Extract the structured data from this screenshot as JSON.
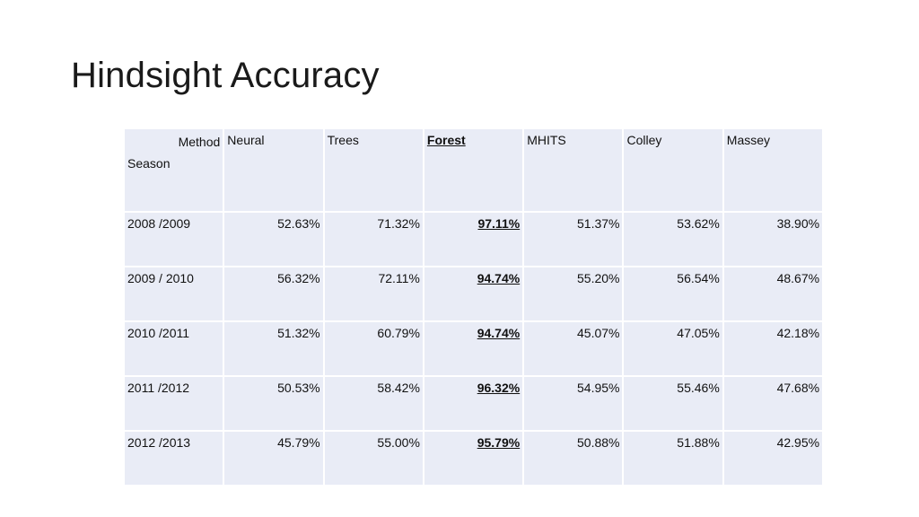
{
  "title": "Hindsight Accuracy",
  "table": {
    "corner_method": "Method",
    "corner_season": "Season",
    "headers": [
      "Neural",
      "Trees",
      "Forest",
      "MHITS",
      "Colley",
      "Massey"
    ],
    "highlight_column": "Forest",
    "rows": [
      {
        "season": "2008 /2009",
        "values": [
          "52.63%",
          "71.32%",
          "97.11%",
          "51.37%",
          "53.62%",
          "38.90%"
        ]
      },
      {
        "season": "2009 / 2010",
        "values": [
          "56.32%",
          "72.11%",
          "94.74%",
          "55.20%",
          "56.54%",
          "48.67%"
        ]
      },
      {
        "season": "2010 /2011",
        "values": [
          "51.32%",
          "60.79%",
          "94.74%",
          "45.07%",
          "47.05%",
          "42.18%"
        ]
      },
      {
        "season": "2011 /2012",
        "values": [
          "50.53%",
          "58.42%",
          "96.32%",
          "54.95%",
          "55.46%",
          "47.68%"
        ]
      },
      {
        "season": "2012 /2013",
        "values": [
          "45.79%",
          "55.00%",
          "95.79%",
          "50.88%",
          "51.88%",
          "42.95%"
        ]
      }
    ]
  },
  "colors": {
    "cell_background": "#e9ecf6",
    "text": "#111111"
  }
}
